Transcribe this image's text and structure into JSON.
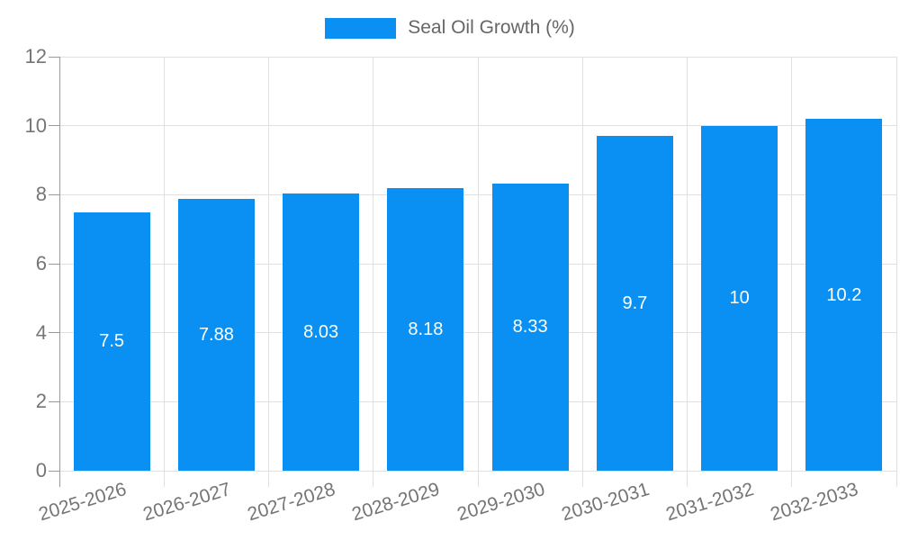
{
  "chart_data": {
    "type": "bar",
    "title": "",
    "legend": "Seal Oil Growth (%)",
    "legend_position": "top-center",
    "categories": [
      "2025-2026",
      "2026-2027",
      "2027-2028",
      "2028-2029",
      "2029-2030",
      "2030-2031",
      "2031-2032",
      "2032-2033"
    ],
    "values": [
      7.5,
      7.88,
      8.03,
      8.18,
      8.33,
      9.7,
      10,
      10.2
    ],
    "value_labels": [
      "7.5",
      "7.88",
      "8.03",
      "8.18",
      "8.33",
      "9.7",
      "10",
      "10.2"
    ],
    "xlabel": "",
    "ylabel": "",
    "ylim": [
      0,
      12
    ],
    "yticks": [
      0,
      2,
      4,
      6,
      8,
      10,
      12
    ],
    "grid": true,
    "colors": {
      "bar": "#0a90f2",
      "grid": "#e0e0e0",
      "axis": "#999999",
      "tick_label": "#757575",
      "legend_label": "#666666",
      "value_label": "#ffffff",
      "background": "#ffffff"
    }
  }
}
